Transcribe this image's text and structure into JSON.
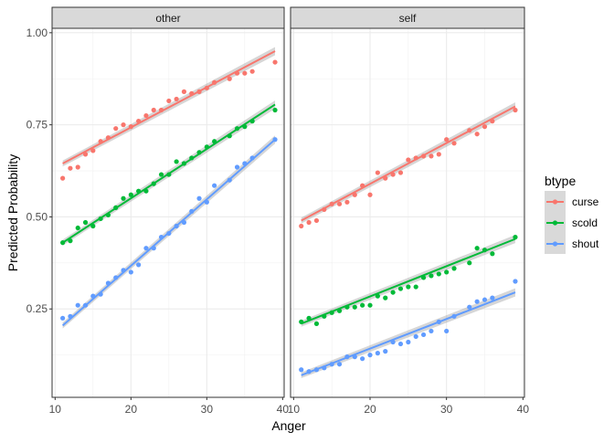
{
  "chart_data": {
    "type": "scatter",
    "xlabel": "Anger",
    "ylabel": "Predicted Probability",
    "xlim": [
      9.6,
      40.2
    ],
    "ylim": [
      0.01,
      1.012
    ],
    "x_ticks": [
      "10",
      "20",
      "30",
      "40"
    ],
    "y_ticks": [
      "0.25",
      "0.50",
      "0.75",
      "1.00"
    ],
    "grid": true,
    "legend": {
      "title": "btype",
      "placement": "right",
      "entries": [
        "curse",
        "scold",
        "shout"
      ]
    },
    "colors": {
      "curse": "#F8766D",
      "scold": "#00BA38",
      "shout": "#619CFF"
    },
    "panels": [
      {
        "label": "other",
        "series": [
          {
            "name": "curse",
            "fit": [
              [
                11,
                0.645
              ],
              [
                39,
                0.95
              ]
            ],
            "x": [
              11,
              12,
              13,
              14,
              15,
              16,
              17,
              18,
              19,
              20,
              21,
              22,
              23,
              24,
              25,
              26,
              27,
              28,
              29,
              30,
              31,
              33,
              34,
              35,
              36,
              39
            ],
            "y": [
              0.605,
              0.632,
              0.635,
              0.67,
              0.68,
              0.705,
              0.715,
              0.74,
              0.75,
              0.745,
              0.76,
              0.775,
              0.79,
              0.79,
              0.815,
              0.82,
              0.84,
              0.835,
              0.84,
              0.85,
              0.865,
              0.875,
              0.89,
              0.89,
              0.895,
              0.92
            ]
          },
          {
            "name": "scold",
            "fit": [
              [
                11,
                0.43
              ],
              [
                39,
                0.805
              ]
            ],
            "x": [
              11,
              12,
              13,
              14,
              15,
              16,
              17,
              18,
              19,
              20,
              21,
              22,
              23,
              24,
              25,
              26,
              27,
              28,
              29,
              30,
              31,
              33,
              34,
              35,
              36,
              39
            ],
            "y": [
              0.43,
              0.435,
              0.47,
              0.485,
              0.475,
              0.495,
              0.505,
              0.525,
              0.55,
              0.56,
              0.57,
              0.57,
              0.59,
              0.615,
              0.615,
              0.65,
              0.645,
              0.66,
              0.675,
              0.69,
              0.705,
              0.72,
              0.74,
              0.745,
              0.76,
              0.79
            ]
          },
          {
            "name": "shout",
            "fit": [
              [
                11,
                0.205
              ],
              [
                39,
                0.71
              ]
            ],
            "x": [
              11,
              12,
              13,
              14,
              15,
              16,
              17,
              18,
              19,
              20,
              21,
              22,
              23,
              24,
              25,
              26,
              27,
              28,
              29,
              30,
              31,
              33,
              34,
              35,
              36,
              39
            ],
            "y": [
              0.225,
              0.23,
              0.26,
              0.26,
              0.285,
              0.29,
              0.32,
              0.335,
              0.355,
              0.35,
              0.37,
              0.415,
              0.415,
              0.445,
              0.455,
              0.475,
              0.485,
              0.515,
              0.55,
              0.54,
              0.585,
              0.6,
              0.635,
              0.645,
              0.66,
              0.71
            ]
          }
        ]
      },
      {
        "label": "self",
        "series": [
          {
            "name": "curse",
            "fit": [
              [
                11,
                0.49
              ],
              [
                39,
                0.8
              ]
            ],
            "x": [
              11,
              12,
              13,
              14,
              15,
              16,
              17,
              18,
              19,
              20,
              21,
              22,
              23,
              24,
              25,
              26,
              27,
              28,
              29,
              30,
              31,
              33,
              34,
              35,
              36,
              39
            ],
            "y": [
              0.475,
              0.485,
              0.49,
              0.52,
              0.535,
              0.535,
              0.54,
              0.56,
              0.585,
              0.56,
              0.62,
              0.605,
              0.615,
              0.62,
              0.655,
              0.66,
              0.665,
              0.665,
              0.67,
              0.71,
              0.7,
              0.735,
              0.725,
              0.745,
              0.76,
              0.79
            ]
          },
          {
            "name": "scold",
            "fit": [
              [
                11,
                0.21
              ],
              [
                39,
                0.44
              ]
            ],
            "x": [
              11,
              12,
              13,
              14,
              15,
              16,
              17,
              18,
              19,
              20,
              21,
              22,
              23,
              24,
              25,
              26,
              27,
              28,
              29,
              30,
              31,
              33,
              34,
              35,
              36,
              39
            ],
            "y": [
              0.215,
              0.225,
              0.21,
              0.23,
              0.24,
              0.245,
              0.255,
              0.255,
              0.26,
              0.26,
              0.285,
              0.28,
              0.295,
              0.305,
              0.31,
              0.31,
              0.335,
              0.34,
              0.345,
              0.35,
              0.36,
              0.375,
              0.415,
              0.41,
              0.4,
              0.445
            ]
          },
          {
            "name": "shout",
            "fit": [
              [
                11,
                0.07
              ],
              [
                39,
                0.295
              ]
            ],
            "x": [
              11,
              12,
              13,
              14,
              15,
              16,
              17,
              18,
              19,
              20,
              21,
              22,
              23,
              24,
              25,
              26,
              27,
              28,
              29,
              30,
              31,
              33,
              34,
              35,
              36,
              39
            ],
            "y": [
              0.085,
              0.08,
              0.085,
              0.09,
              0.1,
              0.1,
              0.12,
              0.12,
              0.115,
              0.125,
              0.13,
              0.135,
              0.16,
              0.155,
              0.16,
              0.175,
              0.18,
              0.19,
              0.215,
              0.19,
              0.23,
              0.255,
              0.27,
              0.275,
              0.28,
              0.325
            ]
          }
        ]
      }
    ]
  }
}
